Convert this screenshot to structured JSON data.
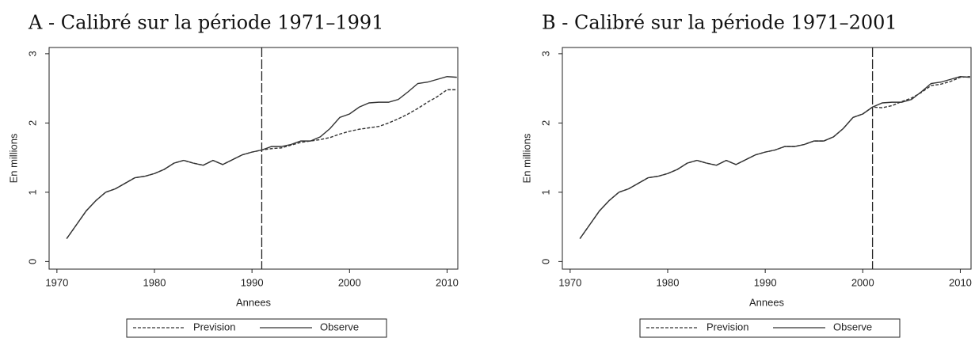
{
  "chart_data": [
    {
      "type": "line",
      "title": "A - Calibré sur la période 1971–1991",
      "xlabel": "Annees",
      "ylabel": "En millions",
      "x": [
        1971,
        1972,
        1973,
        1974,
        1975,
        1976,
        1977,
        1978,
        1979,
        1980,
        1981,
        1982,
        1983,
        1984,
        1985,
        1986,
        1987,
        1988,
        1989,
        1990,
        1991,
        1992,
        1993,
        1994,
        1995,
        1996,
        1997,
        1998,
        1999,
        2000,
        2001,
        2002,
        2003,
        2004,
        2005,
        2006,
        2007,
        2008,
        2009,
        2010,
        2011
      ],
      "series": [
        {
          "name": "Prevision",
          "color": "#333333",
          "dashed": true,
          "values": [
            0.33,
            0.53,
            0.73,
            0.88,
            1.0,
            1.05,
            1.13,
            1.21,
            1.23,
            1.27,
            1.33,
            1.42,
            1.46,
            1.42,
            1.39,
            1.46,
            1.4,
            1.47,
            1.54,
            1.58,
            1.61,
            1.63,
            1.64,
            1.68,
            1.72,
            1.74,
            1.76,
            1.79,
            1.84,
            1.88,
            1.91,
            1.93,
            1.95,
            2.0,
            2.06,
            2.13,
            2.21,
            2.3,
            2.38,
            2.48,
            2.48
          ]
        },
        {
          "name": "Observe",
          "color": "#333333",
          "dashed": false,
          "values": [
            0.33,
            0.53,
            0.73,
            0.88,
            1.0,
            1.05,
            1.13,
            1.21,
            1.23,
            1.27,
            1.33,
            1.42,
            1.46,
            1.42,
            1.39,
            1.46,
            1.4,
            1.47,
            1.54,
            1.58,
            1.61,
            1.66,
            1.66,
            1.69,
            1.74,
            1.74,
            1.8,
            1.92,
            2.08,
            2.13,
            2.23,
            2.29,
            2.3,
            2.3,
            2.34,
            2.45,
            2.57,
            2.59,
            2.63,
            2.67,
            2.66
          ]
        }
      ],
      "vline": 1991,
      "xlim": [
        1969.2,
        2011.1
      ],
      "ylim": [
        -0.11,
        3.09
      ],
      "xticks": [
        1970,
        1980,
        1990,
        2000,
        2010
      ],
      "yticks": [
        0,
        1,
        2,
        3
      ]
    },
    {
      "type": "line",
      "title": "B - Calibré sur la période 1971–2001",
      "xlabel": "Annees",
      "ylabel": "En millions",
      "x": [
        1971,
        1972,
        1973,
        1974,
        1975,
        1976,
        1977,
        1978,
        1979,
        1980,
        1981,
        1982,
        1983,
        1984,
        1985,
        1986,
        1987,
        1988,
        1989,
        1990,
        1991,
        1992,
        1993,
        1994,
        1995,
        1996,
        1997,
        1998,
        1999,
        2000,
        2001,
        2002,
        2003,
        2004,
        2005,
        2006,
        2007,
        2008,
        2009,
        2010,
        2011
      ],
      "series": [
        {
          "name": "Prevision",
          "color": "#333333",
          "dashed": true,
          "values": [
            0.33,
            0.53,
            0.73,
            0.88,
            1.0,
            1.05,
            1.13,
            1.21,
            1.23,
            1.27,
            1.33,
            1.42,
            1.46,
            1.42,
            1.39,
            1.46,
            1.4,
            1.47,
            1.54,
            1.58,
            1.61,
            1.66,
            1.66,
            1.69,
            1.74,
            1.74,
            1.8,
            1.92,
            2.08,
            2.13,
            2.23,
            2.22,
            2.25,
            2.31,
            2.36,
            2.44,
            2.54,
            2.56,
            2.6,
            2.66,
            2.67
          ]
        },
        {
          "name": "Observe",
          "color": "#333333",
          "dashed": false,
          "values": [
            0.33,
            0.53,
            0.73,
            0.88,
            1.0,
            1.05,
            1.13,
            1.21,
            1.23,
            1.27,
            1.33,
            1.42,
            1.46,
            1.42,
            1.39,
            1.46,
            1.4,
            1.47,
            1.54,
            1.58,
            1.61,
            1.66,
            1.66,
            1.69,
            1.74,
            1.74,
            1.8,
            1.92,
            2.08,
            2.13,
            2.23,
            2.29,
            2.3,
            2.3,
            2.34,
            2.45,
            2.57,
            2.59,
            2.63,
            2.67,
            2.66
          ]
        }
      ],
      "vline": 2001,
      "xlim": [
        1969.2,
        2011.1
      ],
      "ylim": [
        -0.11,
        3.09
      ],
      "xticks": [
        1970,
        1980,
        1990,
        2000,
        2010
      ],
      "yticks": [
        0,
        1,
        2,
        3
      ]
    }
  ]
}
